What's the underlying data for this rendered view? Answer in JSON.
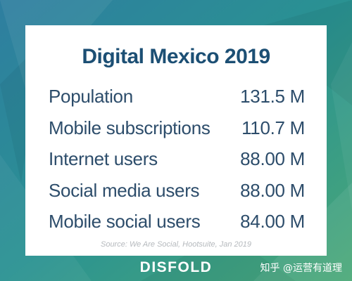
{
  "card": {
    "title": "Digital Mexico 2019",
    "rows": [
      {
        "label": "Population",
        "value": "131.5 M"
      },
      {
        "label": "Mobile subscriptions",
        "value": "110.7 M"
      },
      {
        "label": "Internet users",
        "value": "88.00 M"
      },
      {
        "label": "Social media users",
        "value": "88.00 M"
      },
      {
        "label": "Mobile social users",
        "value": "84.00 M"
      }
    ],
    "source": "Source: We Are Social, Hootsuite, Jan 2019"
  },
  "footer": {
    "brand": "DISFOLD",
    "watermark": "知乎 @运营有道理"
  },
  "colors": {
    "title": "#1c4f74",
    "text": "#2d4d6b",
    "background": "#2b8f93"
  }
}
